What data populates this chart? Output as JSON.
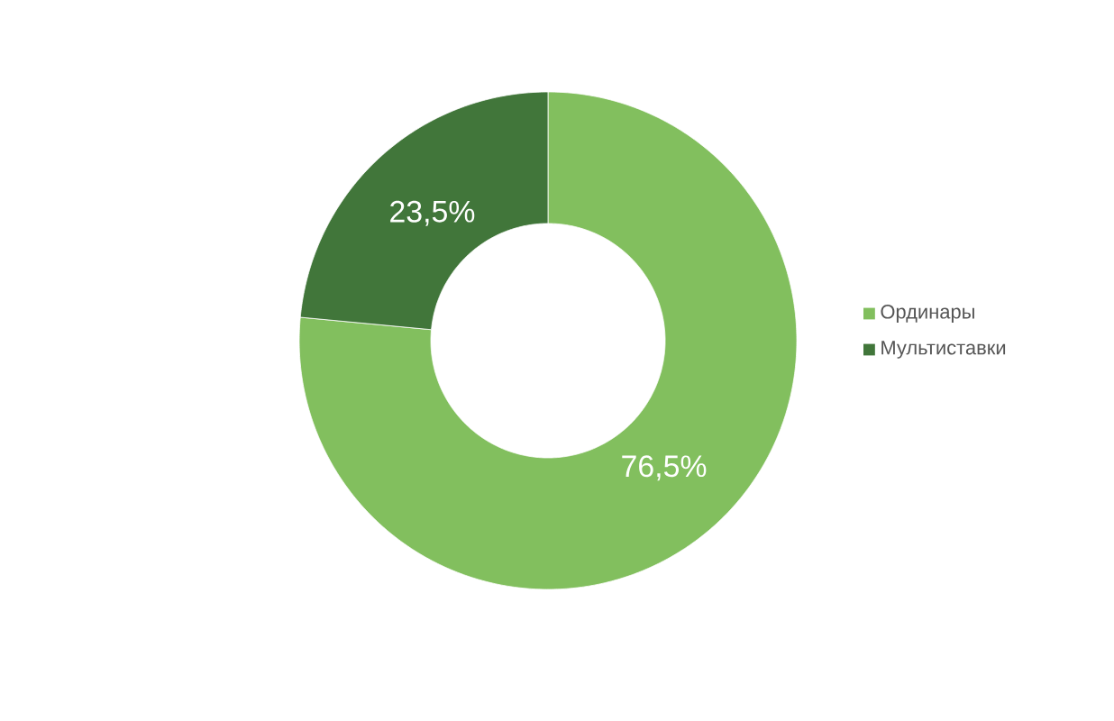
{
  "chart_data": {
    "type": "donut",
    "categories": [
      "Ординары",
      "Мультиставки"
    ],
    "values": [
      76.5,
      23.5
    ],
    "colors": [
      "#82bf5e",
      "#41763a"
    ],
    "value_labels": [
      "76,5%",
      "23,5%"
    ],
    "legend": "right"
  }
}
